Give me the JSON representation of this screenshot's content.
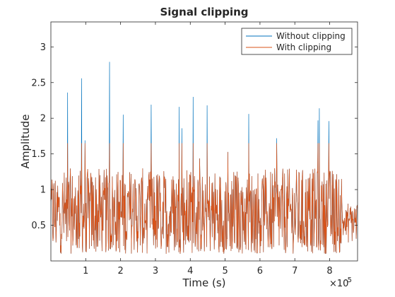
{
  "chart_data": {
    "type": "line",
    "title": "Signal clipping",
    "xlabel": "Time (s)",
    "ylabel": "Amplitude",
    "x_exponent_label": "×10",
    "x_exponent": "-5",
    "xlim": [
      0,
      8.8
    ],
    "ylim": [
      0,
      3.35
    ],
    "xticks": [
      1,
      2,
      3,
      4,
      5,
      6,
      7,
      8
    ],
    "yticks": [
      0.5,
      1,
      1.5,
      2,
      2.5,
      3
    ],
    "xtick_labels": [
      "1",
      "2",
      "3",
      "4",
      "5",
      "6",
      "7",
      "8"
    ],
    "ytick_labels": [
      "0.5",
      "1",
      "1.5",
      "2",
      "2.5",
      "3"
    ],
    "grid": false,
    "legend_position": "top-right",
    "clip_level": 1.65,
    "series": [
      {
        "name": "Without clipping",
        "color": "#0072BD",
        "note_values": "noise-like signal, mostly 0.1–1.5; peaks listed",
        "peaks": [
          {
            "x": 0.48,
            "y": 2.36
          },
          {
            "x": 0.88,
            "y": 2.56
          },
          {
            "x": 0.98,
            "y": 1.69
          },
          {
            "x": 1.68,
            "y": 2.79
          },
          {
            "x": 2.08,
            "y": 2.05
          },
          {
            "x": 2.88,
            "y": 2.19
          },
          {
            "x": 3.68,
            "y": 2.16
          },
          {
            "x": 3.76,
            "y": 1.86
          },
          {
            "x": 4.08,
            "y": 2.3
          },
          {
            "x": 4.48,
            "y": 2.18
          },
          {
            "x": 5.68,
            "y": 2.06
          },
          {
            "x": 6.48,
            "y": 1.72
          },
          {
            "x": 7.66,
            "y": 1.97
          },
          {
            "x": 7.7,
            "y": 2.14
          },
          {
            "x": 7.98,
            "y": 1.96
          }
        ]
      },
      {
        "name": "With clipping",
        "color": "#D95319"
      }
    ]
  }
}
